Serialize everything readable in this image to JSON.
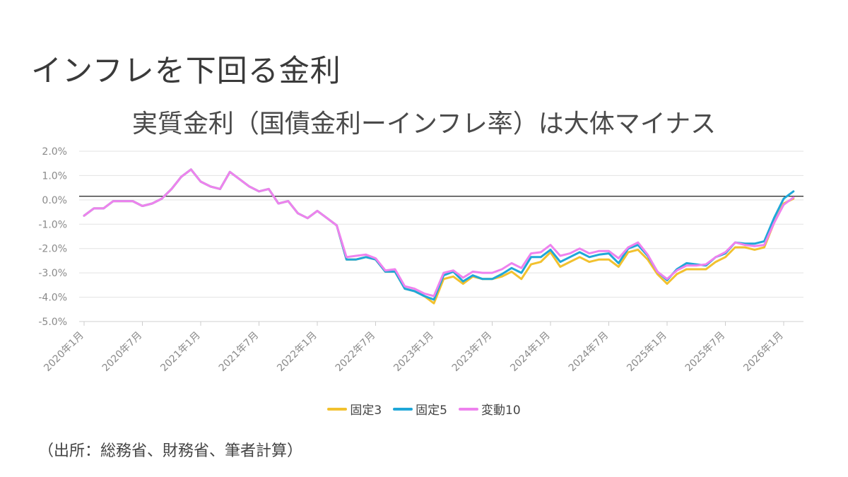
{
  "page": {
    "title": "インフレを下回る金利",
    "source": "（出所：総務省、財務省、筆者計算）"
  },
  "chart_data": {
    "type": "line",
    "title": "実質金利（国債金利ーインフレ率）は大体マイナス",
    "xlabel": "",
    "ylabel": "",
    "ylim": [
      -5,
      2
    ],
    "y_ticks": [
      "2.0%",
      "1.0%",
      "0.0%",
      "-1.0%",
      "-2.0%",
      "-3.0%",
      "-4.0%",
      "-5.0%"
    ],
    "y_tick_values": [
      2,
      1,
      0,
      -1,
      -2,
      -3,
      -4,
      -5
    ],
    "x_tick_labels": [
      "2020年1月",
      "2020年7月",
      "2021年1月",
      "2021年7月",
      "2022年1月",
      "2022年7月",
      "2023年1月",
      "2023年7月",
      "2024年1月",
      "2024年7月",
      "2025年1月",
      "2025年7月",
      "2026年1月"
    ],
    "x_start": "2020-01",
    "x_end": "2026-03",
    "reference_line": 0.15,
    "grid": "horizontal",
    "legend_position": "bottom",
    "series": [
      {
        "name": "固定3",
        "color": "#f2c12e",
        "values": [
          -0.65,
          -0.35,
          -0.35,
          -0.05,
          -0.05,
          -0.05,
          -0.25,
          -0.15,
          0.05,
          0.45,
          0.95,
          1.25,
          0.75,
          0.55,
          0.45,
          1.15,
          0.85,
          0.55,
          0.35,
          0.45,
          -0.15,
          -0.05,
          -0.55,
          -0.75,
          -0.45,
          -0.75,
          -1.05,
          -2.45,
          -2.45,
          -2.35,
          -2.45,
          -2.95,
          -2.95,
          -3.65,
          -3.75,
          -3.95,
          -4.25,
          -3.25,
          -3.15,
          -3.45,
          -3.15,
          -3.25,
          -3.25,
          -3.15,
          -2.95,
          -3.25,
          -2.65,
          -2.55,
          -2.15,
          -2.75,
          -2.55,
          -2.35,
          -2.55,
          -2.45,
          -2.45,
          -2.75,
          -2.15,
          -2.05,
          -2.45,
          -3.05,
          -3.45,
          -3.05,
          -2.85,
          -2.85,
          -2.85,
          -2.55,
          -2.35,
          -1.95,
          -1.95,
          -2.05,
          -1.95,
          -0.95,
          -0.15,
          0.05
        ]
      },
      {
        "name": "固定5",
        "color": "#1fa7d8",
        "values": [
          -0.65,
          -0.35,
          -0.35,
          -0.05,
          -0.05,
          -0.05,
          -0.25,
          -0.15,
          0.05,
          0.45,
          0.95,
          1.25,
          0.75,
          0.55,
          0.45,
          1.15,
          0.85,
          0.55,
          0.35,
          0.45,
          -0.15,
          -0.05,
          -0.55,
          -0.75,
          -0.45,
          -0.75,
          -1.05,
          -2.45,
          -2.45,
          -2.35,
          -2.45,
          -2.95,
          -2.95,
          -3.65,
          -3.75,
          -3.95,
          -4.1,
          -3.1,
          -2.95,
          -3.35,
          -3.1,
          -3.25,
          -3.25,
          -3.05,
          -2.8,
          -3.0,
          -2.35,
          -2.35,
          -2.05,
          -2.55,
          -2.35,
          -2.15,
          -2.35,
          -2.25,
          -2.2,
          -2.6,
          -2.0,
          -1.85,
          -2.3,
          -2.95,
          -3.3,
          -2.85,
          -2.6,
          -2.65,
          -2.7,
          -2.35,
          -2.2,
          -1.75,
          -1.8,
          -1.8,
          -1.7,
          -0.75,
          0.05,
          0.35
        ]
      },
      {
        "name": "変動10",
        "color": "#ee82ee",
        "values": [
          -0.65,
          -0.35,
          -0.35,
          -0.05,
          -0.05,
          -0.05,
          -0.25,
          -0.15,
          0.05,
          0.45,
          0.95,
          1.25,
          0.75,
          0.55,
          0.45,
          1.15,
          0.85,
          0.55,
          0.35,
          0.45,
          -0.15,
          -0.05,
          -0.55,
          -0.75,
          -0.45,
          -0.75,
          -1.05,
          -2.35,
          -2.3,
          -2.25,
          -2.4,
          -2.9,
          -2.85,
          -3.55,
          -3.65,
          -3.85,
          -3.95,
          -3.0,
          -2.9,
          -3.2,
          -2.95,
          -3.0,
          -3.0,
          -2.85,
          -2.6,
          -2.8,
          -2.2,
          -2.15,
          -1.85,
          -2.3,
          -2.2,
          -2.0,
          -2.2,
          -2.1,
          -2.1,
          -2.4,
          -1.95,
          -1.75,
          -2.25,
          -2.95,
          -3.25,
          -2.9,
          -2.7,
          -2.7,
          -2.65,
          -2.35,
          -2.15,
          -1.75,
          -1.85,
          -1.9,
          -1.85,
          -0.95,
          -0.2,
          0.1
        ]
      }
    ]
  }
}
